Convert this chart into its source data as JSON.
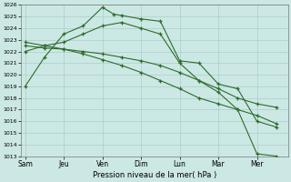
{
  "title": "Pression niveau de la mer( hPa )",
  "bg_color": "#cce8e4",
  "grid_color": "#aaceca",
  "line_color": "#2d6b2d",
  "ylim": [
    1013,
    1026
  ],
  "yticks": [
    1013,
    1014,
    1015,
    1016,
    1017,
    1018,
    1019,
    1020,
    1021,
    1022,
    1023,
    1024,
    1025,
    1026
  ],
  "xlabels": [
    "Sam",
    "Jeu",
    "Ven",
    "Dim",
    "Lun",
    "Mar",
    "Mer"
  ],
  "xtick_positions": [
    0,
    1,
    2,
    3,
    4,
    5,
    6
  ],
  "xlim": [
    -0.1,
    6.8
  ],
  "lines": [
    {
      "x": [
        0,
        0.5,
        1.0,
        1.5,
        2.0,
        2.3,
        2.5,
        3.0,
        3.5,
        4.0,
        4.5,
        5.0,
        5.5,
        6.0,
        6.5
      ],
      "y": [
        1019,
        1021.5,
        1023.5,
        1024.2,
        1025.8,
        1025.2,
        1025.1,
        1024.8,
        1024.6,
        1021.2,
        1021.0,
        1019.2,
        1018.8,
        1016.0,
        1015.5
      ]
    },
    {
      "x": [
        0,
        0.5,
        1.0,
        1.5,
        2.0,
        2.5,
        3.0,
        3.5,
        4.0,
        4.5,
        5.0,
        5.5,
        6.0,
        6.5
      ],
      "y": [
        1022,
        1022.5,
        1022.8,
        1023.5,
        1024.2,
        1024.5,
        1024.0,
        1023.5,
        1021.0,
        1019.5,
        1018.5,
        1017.0,
        1013.2,
        1013.0
      ]
    },
    {
      "x": [
        0,
        0.5,
        1.0,
        1.5,
        2.0,
        2.5,
        3.0,
        3.5,
        4.0,
        4.5,
        5.0,
        5.5,
        6.0,
        6.5
      ],
      "y": [
        1022.5,
        1022.3,
        1022.2,
        1022.0,
        1021.8,
        1021.5,
        1021.2,
        1020.8,
        1020.2,
        1019.5,
        1018.8,
        1018.0,
        1017.5,
        1017.2
      ]
    },
    {
      "x": [
        0,
        0.5,
        1.0,
        1.5,
        2.0,
        2.5,
        3.0,
        3.5,
        4.0,
        4.5,
        5.0,
        5.5,
        6.0,
        6.5
      ],
      "y": [
        1022.8,
        1022.5,
        1022.2,
        1021.8,
        1021.3,
        1020.8,
        1020.2,
        1019.5,
        1018.8,
        1018.0,
        1017.5,
        1017.0,
        1016.5,
        1015.8
      ]
    }
  ]
}
